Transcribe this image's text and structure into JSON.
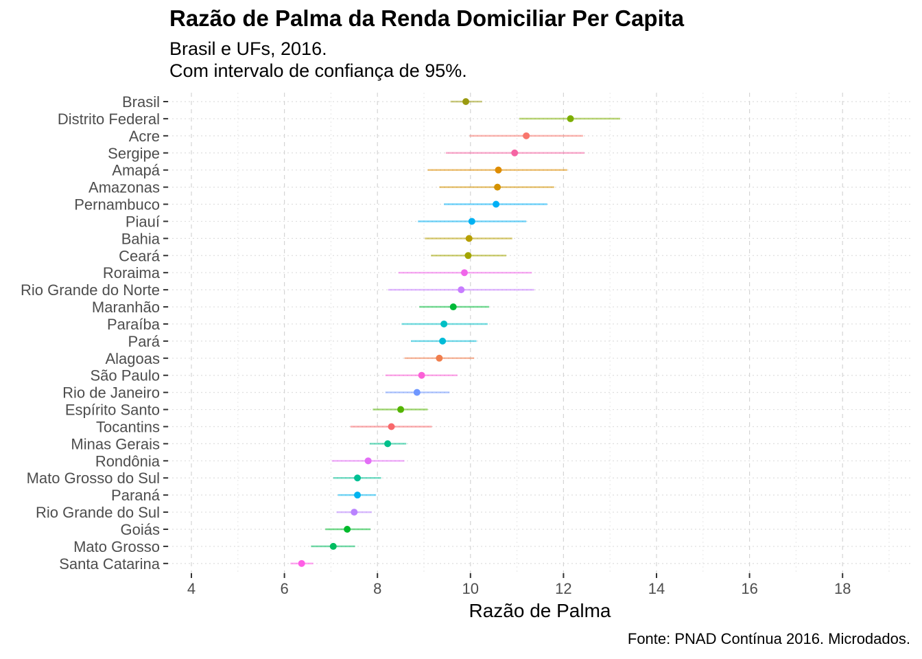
{
  "chart_data": {
    "type": "errorbar",
    "title": "Razão de Palma da Renda Domiciliar Per Capita",
    "subtitle": [
      "Brasil e UFs, 2016.",
      "Com intervalo de confiança de 95%."
    ],
    "xlabel": "Razão de Palma",
    "ylabel": "",
    "caption": "Fonte: PNAD Contínua 2016. Microdados.",
    "xlim": [
      3.5,
      19.5
    ],
    "xticks": [
      4,
      6,
      8,
      10,
      12,
      14,
      16,
      18
    ],
    "grid": true,
    "legend": "none",
    "categories": [
      "Brasil",
      "Distrito Federal",
      "Acre",
      "Sergipe",
      "Amapá",
      "Amazonas",
      "Pernambuco",
      "Piauí",
      "Bahia",
      "Ceará",
      "Roraima",
      "Rio Grande do Norte",
      "Maranhão",
      "Paraíba",
      "Pará",
      "Alagoas",
      "São Paulo",
      "Rio de Janeiro",
      "Espírito Santo",
      "Tocantins",
      "Minas Gerais",
      "Rondônia",
      "Mato Grosso do Sul",
      "Paraná",
      "Rio Grande do Sul",
      "Goiás",
      "Mato Grosso",
      "Santa Catarina"
    ],
    "values": [
      9.9,
      12.15,
      11.2,
      10.95,
      10.6,
      10.58,
      10.55,
      10.03,
      9.97,
      9.95,
      9.87,
      9.8,
      9.63,
      9.43,
      9.4,
      9.33,
      8.95,
      8.85,
      8.5,
      8.3,
      8.22,
      7.8,
      7.57,
      7.57,
      7.5,
      7.35,
      7.05,
      6.37
    ],
    "lower": [
      9.57,
      11.05,
      9.98,
      9.47,
      9.08,
      9.33,
      9.43,
      8.87,
      9.02,
      9.15,
      8.45,
      8.23,
      8.9,
      8.52,
      8.72,
      8.58,
      8.17,
      8.17,
      7.9,
      7.42,
      7.83,
      7.02,
      7.05,
      7.15,
      7.12,
      6.88,
      6.57,
      6.13
    ],
    "upper": [
      10.25,
      13.22,
      12.42,
      12.45,
      12.08,
      11.8,
      11.65,
      11.2,
      10.9,
      10.77,
      11.32,
      11.37,
      10.4,
      10.37,
      10.13,
      10.08,
      9.72,
      9.55,
      9.08,
      9.17,
      8.62,
      8.58,
      8.08,
      7.97,
      7.88,
      7.85,
      7.52,
      6.62
    ],
    "colors": [
      "#9a9a10",
      "#7cae00",
      "#f8766d",
      "#f564a3",
      "#de8c00",
      "#d49200",
      "#00b0f6",
      "#00b1f2",
      "#b79f00",
      "#a3a500",
      "#f066ea",
      "#c77cff",
      "#00ba38",
      "#00bfc4",
      "#00bbd7",
      "#f07e4d",
      "#fb61d7",
      "#6f97ff",
      "#53b400",
      "#f8686b",
      "#00c08b",
      "#e36ef6",
      "#00c094",
      "#00b4f0",
      "#b983ff",
      "#00b92c",
      "#00bc60",
      "#ff5ee6"
    ]
  }
}
